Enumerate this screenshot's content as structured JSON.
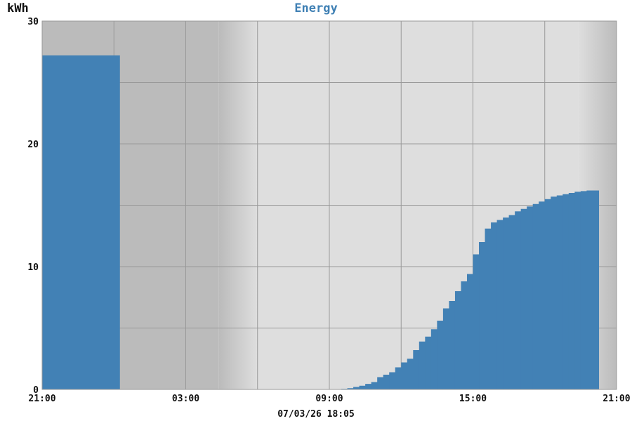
{
  "chart_data": {
    "type": "bar",
    "title": "Energy",
    "ylabel": "kWh",
    "timestamp": "07/03/26 18:05",
    "ylim": [
      0,
      30
    ],
    "y_ticks": [
      "0",
      "10",
      "20",
      "30"
    ],
    "x_range_hours": [
      0,
      24
    ],
    "x_ticks": [
      {
        "hour": 0,
        "label": "21:00"
      },
      {
        "hour": 6,
        "label": "03:00"
      },
      {
        "hour": 12,
        "label": "09:00"
      },
      {
        "hour": 18,
        "label": "15:00"
      },
      {
        "hour": 24,
        "label": "21:00"
      }
    ],
    "grid": true,
    "colors": {
      "bar": "#4281b5",
      "night_bg": "#bbbbbb",
      "day_bg": "#dedede",
      "grid": "#999999",
      "title": "#3f80b4"
    },
    "daylight": {
      "start_hour": 9.0,
      "end_hour": 22.4
    },
    "yesterday_total": {
      "start_hour": 0,
      "end_hour": 3.25,
      "value": 27.2
    },
    "bar_width_hours": 0.25,
    "bars_start_hour": 3.25,
    "values": [
      0.02,
      0.02,
      0.02,
      0.02,
      0.02,
      0.02,
      0.02,
      0.02,
      0.02,
      0.02,
      0.02,
      0.02,
      0.02,
      0.02,
      0.02,
      0.02,
      0.02,
      0.02,
      0.02,
      0.02,
      0.02,
      0.02,
      0.02,
      0.02,
      0.02,
      0.02,
      0.02,
      0.02,
      0.02,
      0.02,
      0.02,
      0.02,
      0.02,
      0.02,
      0.02,
      0.02,
      0.02,
      0.05,
      0.1,
      0.2,
      0.3,
      0.45,
      0.6,
      1.0,
      1.2,
      1.4,
      1.8,
      2.2,
      2.5,
      3.2,
      3.9,
      4.3,
      4.9,
      5.6,
      6.6,
      7.2,
      8.0,
      8.8,
      9.4,
      11.0,
      12.0,
      13.1,
      13.6,
      13.8,
      14.0,
      14.2,
      14.5,
      14.7,
      14.9,
      15.1,
      15.3,
      15.5,
      15.7,
      15.8,
      15.9,
      16.0,
      16.1,
      16.15,
      16.2,
      16.2
    ]
  }
}
